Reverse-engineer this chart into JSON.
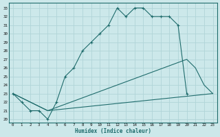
{
  "bg_color": "#cce8ea",
  "grid_color": "#b0d4d8",
  "line_color": "#1e6b6b",
  "xlabel": "Humidex (Indice chaleur)",
  "xlim_min": -0.5,
  "xlim_max": 23.5,
  "ylim_min": 19.6,
  "ylim_max": 33.6,
  "xticks": [
    0,
    1,
    2,
    3,
    4,
    5,
    6,
    7,
    8,
    9,
    10,
    11,
    12,
    13,
    14,
    15,
    16,
    17,
    18,
    19,
    20,
    21,
    22,
    23
  ],
  "yticks": [
    20,
    21,
    22,
    23,
    24,
    25,
    26,
    27,
    28,
    29,
    30,
    31,
    32,
    33
  ],
  "line1_x": [
    0,
    1,
    2,
    3,
    4,
    5,
    6,
    7,
    8,
    9,
    10,
    11,
    12,
    13,
    14,
    15,
    16,
    17,
    18,
    19,
    20
  ],
  "line1_y": [
    23,
    22,
    21,
    21,
    20,
    22,
    25,
    26,
    28,
    29,
    30,
    31,
    33,
    32,
    33,
    33,
    32,
    32,
    32,
    31,
    23
  ],
  "line2_x": [
    0,
    4,
    20,
    21,
    22,
    23
  ],
  "line2_y": [
    23,
    21,
    27,
    26,
    24,
    23
  ],
  "line3_x": [
    0,
    4,
    23
  ],
  "line3_y": [
    23,
    21,
    23
  ]
}
